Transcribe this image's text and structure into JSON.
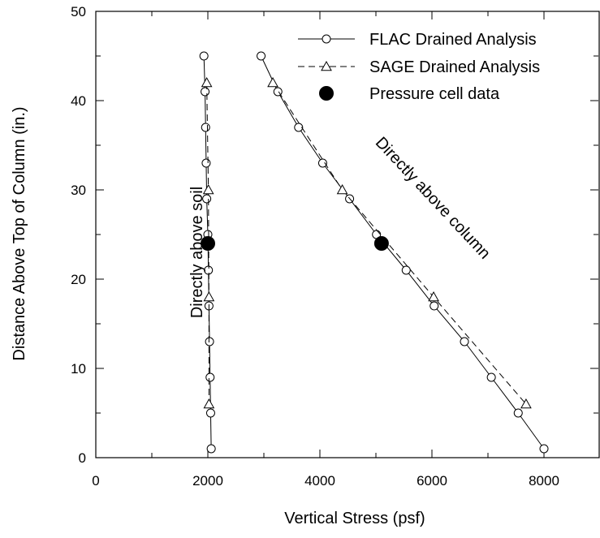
{
  "chart_data": {
    "type": "scatter",
    "xlabel": "Vertical Stress (psf)",
    "ylabel": "Distance Above Top of Column (in.)",
    "xlim": [
      0,
      9000
    ],
    "ylim": [
      0,
      50
    ],
    "x_ticks": [
      0,
      2000,
      4000,
      6000,
      8000
    ],
    "y_ticks": [
      0,
      10,
      20,
      30,
      40,
      50
    ],
    "grid": false,
    "legend_position": "top-right",
    "series": [
      {
        "name": "FLAC Drained Analysis",
        "marker": "open-circle",
        "line": "solid",
        "color": "#000000",
        "groups": [
          {
            "label": "Directly above soil",
            "points": [
              [
                1930,
                45
              ],
              [
                1950,
                41
              ],
              [
                1960,
                37
              ],
              [
                1970,
                33
              ],
              [
                1980,
                29
              ],
              [
                2000,
                25
              ],
              [
                2010,
                21
              ],
              [
                2020,
                17
              ],
              [
                2030,
                13
              ],
              [
                2040,
                9
              ],
              [
                2050,
                5
              ],
              [
                2060,
                1
              ]
            ]
          },
          {
            "label": "Directly above column",
            "points": [
              [
                2950,
                45
              ],
              [
                3250,
                41
              ],
              [
                3620,
                37
              ],
              [
                4050,
                33
              ],
              [
                4530,
                29
              ],
              [
                5010,
                25
              ],
              [
                5540,
                21
              ],
              [
                6040,
                17
              ],
              [
                6580,
                13
              ],
              [
                7060,
                9
              ],
              [
                7540,
                5
              ],
              [
                8000,
                1
              ]
            ]
          }
        ]
      },
      {
        "name": "SAGE Drained Analysis",
        "marker": "open-triangle",
        "line": "dashed",
        "color": "#000000",
        "groups": [
          {
            "label": "Directly above soil",
            "points": [
              [
                1980,
                42
              ],
              [
                2010,
                30
              ],
              [
                2020,
                18
              ],
              [
                2020,
                6
              ]
            ]
          },
          {
            "label": "Directly above column",
            "points": [
              [
                3160,
                42
              ],
              [
                4400,
                30
              ],
              [
                6030,
                18
              ],
              [
                7680,
                6
              ]
            ]
          }
        ]
      },
      {
        "name": "Pressure cell data",
        "marker": "filled-circle",
        "line": "none",
        "color": "#000000",
        "groups": [
          {
            "label": "",
            "points": [
              [
                2000,
                24
              ],
              [
                5100,
                24
              ]
            ]
          }
        ]
      }
    ],
    "annotations": [
      {
        "text": "Directly above soil",
        "x": 1900,
        "y": 23,
        "rotation": -90
      },
      {
        "text": "Directly above column",
        "x": 5950,
        "y": 28.7,
        "rotation": 47
      }
    ]
  }
}
